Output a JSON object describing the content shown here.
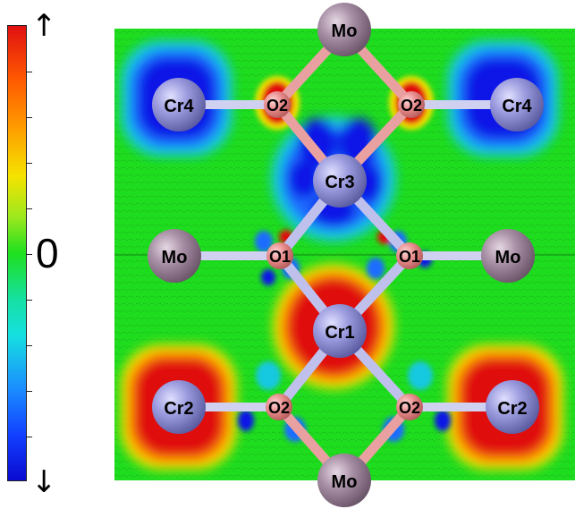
{
  "colorbar": {
    "top_symbol": "↑",
    "bottom_symbol": "↓",
    "zero_label": "0",
    "colors": [
      "#e01010",
      "#ff8a00",
      "#f5e300",
      "#1ee01e",
      "#16e0e0",
      "#1240ff",
      "#0a0ad0"
    ]
  },
  "atoms": {
    "mo_top": "Mo",
    "mo_left": "Mo",
    "mo_right": "Mo",
    "mo_bottom": "Mo",
    "cr4_left": "Cr4",
    "cr4_right": "Cr4",
    "cr3": "Cr3",
    "cr1": "Cr1",
    "cr2_left": "Cr2",
    "cr2_right": "Cr2",
    "o2_top_left": "O2",
    "o2_top_right": "O2",
    "o1_left": "O1",
    "o1_right": "O1",
    "o2_bottom_left": "O2",
    "o2_bottom_right": "O2"
  },
  "map_colors": {
    "background": "#1edc1e",
    "spin_up": "#e01010",
    "spin_down": "#0a14e6",
    "cation": "#8c8cd6",
    "mo_atom": "#a08a9e",
    "oxygen": "#e78a8a",
    "bond_cr": "#b9b9e8",
    "bond_mo": "#e8a0a0"
  }
}
